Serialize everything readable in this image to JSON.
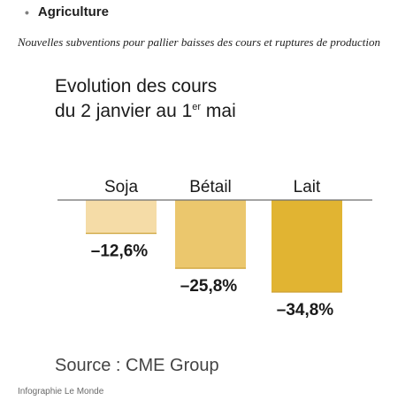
{
  "section": {
    "bullet": "•",
    "label": "Agriculture"
  },
  "article": {
    "subtitle": "Nouvelles subventions pour pallier baisses des cours et ruptures de production"
  },
  "chart_data": {
    "type": "bar",
    "title_line1": "Evolution des cours",
    "title_line2_prefix": "du 2 janvier au 1",
    "title_line2_sup": "er",
    "title_line2_suffix": " mai",
    "categories": [
      "Soja",
      "Bétail",
      "Lait"
    ],
    "values": [
      -12.6,
      -25.8,
      -34.8
    ],
    "labels": [
      "–12,6%",
      "–25,8%",
      "–34,8%"
    ],
    "colors": [
      "#f5dca7",
      "#ebc76d",
      "#e1b432"
    ],
    "baseline_color": "#6e6e6e",
    "ylim": [
      -40,
      0
    ],
    "grid": false,
    "legend": "none",
    "xlabel": "",
    "ylabel": ""
  },
  "source": {
    "text": "Source : CME Group"
  },
  "credit": {
    "text": "Infographie Le Monde"
  }
}
